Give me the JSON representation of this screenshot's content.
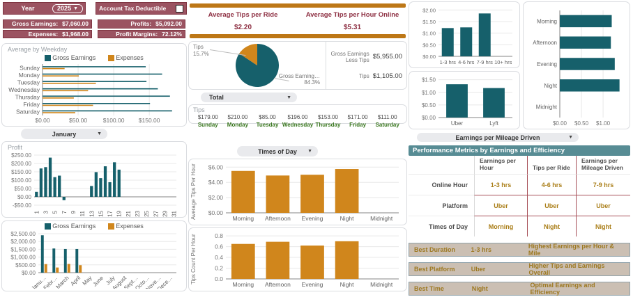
{
  "colors": {
    "maroon": "#9b5361",
    "dark_red_text": "#8d2f42",
    "teal": "#16606b",
    "orange": "#d0861c",
    "orange_strip": "#bd7716",
    "green_day": "#38761d",
    "gold_text": "#aa7e18",
    "table_header_bg": "#578c94",
    "tan_bar_bg": "#cbbfb3",
    "table_border_red": "#a64d56"
  },
  "controls": {
    "year_label": "Year",
    "year_value": "2025",
    "tax_label": "Account Tax Deductible",
    "month_filter": "January",
    "total_filter": "Total",
    "times_filter": "Times of Day",
    "mileage_filter": "Earnings per Mileage Driven"
  },
  "metrics": {
    "gross_label": "Gross Earnings:",
    "gross_value": "$7,060.00",
    "expenses_label": "Expenses:",
    "expenses_value": "$1,968.00",
    "profits_label": "Profits:",
    "profits_value": "$5,092.00",
    "margin_label": "Profit Margins:",
    "margin_value": "72.12%"
  },
  "tips_summary": {
    "per_ride_label": "Average Tips per Ride",
    "per_ride_value": "$2.20",
    "per_hour_label": "Average Tips per Hour Online",
    "per_hour_value": "$5.31"
  },
  "pie_panel": {
    "label_tips": "Tips",
    "pct_tips": "15.7%",
    "label_gross": "Gross Earning…",
    "pct_gross": "84.3%",
    "gross_less_tips_label": "Gross Earnings Less Tips",
    "gross_less_tips_value": "$5,955.00",
    "tips_label": "Tips",
    "tips_value": "$1,105.00"
  },
  "tips_by_day": {
    "title": "Tips",
    "days": [
      {
        "value": "$179.00",
        "day": "Sunday"
      },
      {
        "value": "$210.00",
        "day": "Monday"
      },
      {
        "value": "$85.00",
        "day": "Tuesday"
      },
      {
        "value": "$196.00",
        "day": "Wednesday"
      },
      {
        "value": "$153.00",
        "day": "Thursday"
      },
      {
        "value": "$171.00",
        "day": "Friday"
      },
      {
        "value": "$111.00",
        "day": "Saturday"
      }
    ]
  },
  "performance_table": {
    "title": "Performance Metrics by Earnings and Efficiency",
    "col_headers": [
      "Earnings per Hour",
      "Tips per Ride",
      "Earnings per Mileage Driven"
    ],
    "rows": [
      {
        "header": "Online Hour",
        "cells": [
          "1-3 hrs",
          "4-6 hrs",
          "7-9 hrs"
        ]
      },
      {
        "header": "Platform",
        "cells": [
          "Uber",
          "Uber",
          "Uber"
        ]
      },
      {
        "header": "Times of Day",
        "cells": [
          "Morning",
          "Night",
          "Night"
        ]
      }
    ]
  },
  "best": [
    {
      "label": "Best Duration",
      "value": "1-3 hrs",
      "note": "Highest Earnings per Hour & Mile"
    },
    {
      "label": "Best Platform",
      "value": "Uber",
      "note": "Higher Tips and Earnings Overall"
    },
    {
      "label": "Best Time",
      "value": "Night",
      "note": "Optimal Earnings and Efficiency"
    }
  ],
  "chart_data": {
    "weekday": {
      "type": "bar",
      "orientation": "horizontal",
      "title": "Average by Weekday",
      "categories": [
        "Sunday",
        "Monday",
        "Tuesday",
        "Wednesday",
        "Thursday",
        "Friday",
        "Saturday"
      ],
      "series": [
        {
          "name": "Gross Earnings",
          "color": "#16606b",
          "values": [
            145,
            168,
            146,
            162,
            179,
            151,
            182
          ]
        },
        {
          "name": "Expenses",
          "color": "#d0861c",
          "values": [
            31,
            51,
            75,
            64,
            44,
            71,
            46
          ]
        }
      ],
      "ticks": [
        {
          "v": 0,
          "l": "$0.00"
        },
        {
          "v": 50,
          "l": "$50.00"
        },
        {
          "v": 100,
          "l": "$100.00"
        },
        {
          "v": 150,
          "l": "$150.00"
        }
      ],
      "min": 0,
      "max": 190,
      "ml": 58,
      "mb": 13,
      "bf": 0.5,
      "fs": 8.5,
      "legend_position": "top"
    },
    "profit_daily": {
      "type": "bar",
      "title": "Profit",
      "categories": [
        "1",
        "2",
        "3",
        "4",
        "5",
        "6",
        "7",
        "8",
        "9",
        "10",
        "11",
        "12",
        "13",
        "14",
        "15",
        "16",
        "17",
        "18",
        "19",
        "20",
        "21",
        "22",
        "23",
        "24",
        "25",
        "26",
        "27",
        "28",
        "29",
        "30",
        "31"
      ],
      "series": [
        {
          "name": "Profit",
          "color": "#16606b",
          "values": [
            30,
            170,
            178,
            235,
            118,
            127,
            -20,
            0,
            0,
            0,
            0,
            0,
            65,
            148,
            112,
            183,
            88,
            207,
            163,
            0,
            0,
            0,
            0,
            0,
            0,
            0,
            0,
            0,
            0,
            0,
            0
          ]
        }
      ],
      "ticks": [
        {
          "v": -50,
          "l": "-$50.00"
        },
        {
          "v": 0,
          "l": "$0.00"
        },
        {
          "v": 50,
          "l": "$50.00"
        },
        {
          "v": 100,
          "l": "$100.00"
        },
        {
          "v": 150,
          "l": "$150.00"
        },
        {
          "v": 200,
          "l": "$200.00"
        },
        {
          "v": 250,
          "l": "$250.00"
        }
      ],
      "min": -50,
      "max": 250,
      "ml": 46,
      "mb": 17,
      "bf": 0.8,
      "fs": 8,
      "rot": -90,
      "label_every": 2
    },
    "monthly": {
      "type": "bar",
      "categories": [
        "Janu…",
        "Febr…",
        "March",
        "April",
        "May",
        "June",
        "July",
        "August",
        "Sept…",
        "Octo…",
        "Nove…",
        "Dece…"
      ],
      "series": [
        {
          "name": "Gross Earnings",
          "color": "#16606b",
          "values": [
            2400,
            1550,
            1520,
            1520,
            0,
            0,
            0,
            0,
            0,
            0,
            0,
            0
          ]
        },
        {
          "name": "Expenses",
          "color": "#d0861c",
          "values": [
            550,
            330,
            560,
            480,
            0,
            0,
            0,
            0,
            0,
            0,
            0,
            0
          ]
        }
      ],
      "ticks": [
        {
          "v": 0,
          "l": "$0.00"
        },
        {
          "v": 500,
          "l": "$500.00"
        },
        {
          "v": 1000,
          "l": "$1,000.00"
        },
        {
          "v": 1500,
          "l": "$1,500.00"
        },
        {
          "v": 2000,
          "l": "$2,000.00"
        },
        {
          "v": 2500,
          "l": "$2,500.00"
        }
      ],
      "min": 0,
      "max": 2500,
      "ml": 52,
      "mb": 23,
      "bf": 0.6,
      "fs": 8,
      "rot": -45,
      "legend_position": "top"
    },
    "tips_split": {
      "type": "pie",
      "slices": [
        {
          "label": "Gross Earning…",
          "pct": 84.3,
          "color": "#16606b"
        },
        {
          "label": "Tips",
          "pct": 15.7,
          "color": "#d0861c"
        }
      ]
    },
    "avg_tips": {
      "type": "bar",
      "ylabel": "Average Tips Per Hour",
      "categories": [
        "Morning",
        "Afternoon",
        "Evening",
        "Night",
        "Midnight"
      ],
      "series": [
        {
          "name": "Average Tips Per Hour",
          "color": "#d0861c",
          "values": [
            5.5,
            4.9,
            5.0,
            5.75,
            0
          ]
        }
      ],
      "ticks": [
        {
          "v": 0,
          "l": "$0.00"
        },
        {
          "v": 2,
          "l": "$2.00"
        },
        {
          "v": 4,
          "l": "$4.00"
        },
        {
          "v": 6,
          "l": "$6.00"
        }
      ],
      "min": 0,
      "max": 6.3,
      "ml": 38,
      "mb": 15,
      "bf": 0.7,
      "fs": 8.5
    },
    "tips_count": {
      "type": "bar",
      "ylabel": "Tips Count Per Hour",
      "categories": [
        "Morning",
        "Afternoon",
        "Evening",
        "Night",
        "Midnight"
      ],
      "series": [
        {
          "name": "Tips Count Per Hour",
          "color": "#d0861c",
          "values": [
            0.65,
            0.69,
            0.62,
            0.7,
            0
          ]
        }
      ],
      "ticks": [
        {
          "v": 0,
          "l": "0.0"
        },
        {
          "v": 0.2,
          "l": "0.2"
        },
        {
          "v": 0.4,
          "l": "0.4"
        },
        {
          "v": 0.6,
          "l": "0.6"
        },
        {
          "v": 0.8,
          "l": "0.8"
        }
      ],
      "min": 0,
      "max": 0.84,
      "ml": 38,
      "mb": 15,
      "bf": 0.7,
      "fs": 8.5
    },
    "earnings_hours": {
      "type": "bar",
      "categories": [
        "1-3 hrs",
        "4-6 hrs",
        "7-9 hrs",
        "10+ hrs"
      ],
      "series": [
        {
          "name": "Earnings per Online Hour",
          "color": "#16606b",
          "values": [
            1.22,
            1.25,
            1.85,
            0
          ]
        }
      ],
      "ticks": [
        {
          "v": 0,
          "l": "$0.00"
        },
        {
          "v": 0.5,
          "l": "$0.50"
        },
        {
          "v": 1,
          "l": "$1.00"
        },
        {
          "v": 1.5,
          "l": "$1.50"
        },
        {
          "v": 2,
          "l": "$2.00"
        }
      ],
      "min": 0,
      "max": 2.1,
      "ml": 40,
      "mb": 14,
      "bf": 0.68,
      "fs": 7.5
    },
    "earnings_platform": {
      "type": "bar",
      "categories": [
        "Uber",
        "Lyft"
      ],
      "series": [
        {
          "name": "Earnings per Platform",
          "color": "#16606b",
          "values": [
            1.32,
            1.17
          ]
        }
      ],
      "ticks": [
        {
          "v": 0,
          "l": "$0.00"
        },
        {
          "v": 0.5,
          "l": "$0.50"
        },
        {
          "v": 1,
          "l": "$1.00"
        },
        {
          "v": 1.5,
          "l": "$1.50"
        }
      ],
      "min": 0,
      "max": 1.6,
      "ml": 40,
      "mb": 14,
      "bf": 0.6,
      "fs": 8
    },
    "earnings_times": {
      "type": "bar",
      "orientation": "horizontal",
      "categories": [
        "Morning",
        "Afternoon",
        "Evening",
        "Night",
        "Midnight"
      ],
      "series": [
        {
          "name": "Earnings per Time of Day",
          "color": "#16606b",
          "values": [
            1.2,
            1.18,
            1.27,
            1.38,
            0
          ]
        }
      ],
      "ticks": [
        {
          "v": 0,
          "l": "$0.00"
        },
        {
          "v": 0.5,
          "l": "$0.50"
        },
        {
          "v": 1,
          "l": "$1.00"
        }
      ],
      "min": 0,
      "max": 1.45,
      "ml": 50,
      "mb": 14,
      "mt": 10,
      "bf": 0.6,
      "fs": 8
    }
  }
}
